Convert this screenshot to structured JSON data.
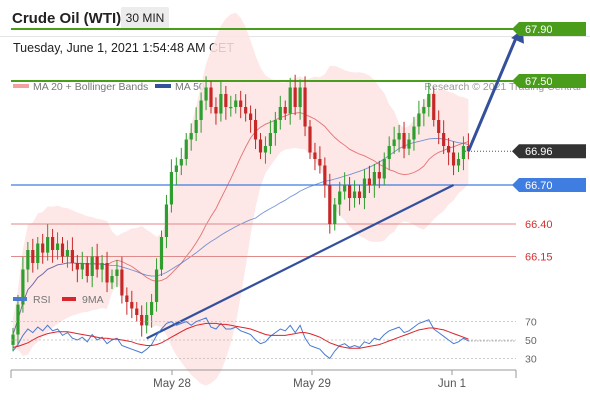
{
  "header": {
    "title": "Crude Oil (WTI)",
    "timeframe": "30 MIN"
  },
  "timestamp": "Tuesday, June 1, 2021 1:54:48 AM CET",
  "legend": {
    "bollinger": "MA 20 + Bollinger Bands",
    "ma50": "MA 50"
  },
  "copyright": "Research © 2021 Trading Central",
  "colors": {
    "up": "#2e9e2e",
    "down": "#c62828",
    "ma20": "#e57373",
    "band": "#fde3e3",
    "ma50": "#3f6cc4",
    "trend": "#33509b",
    "resistance": "#4a9d1b",
    "support_blue": "#3f7de0",
    "support_red": "#e08a8a",
    "current": "#333333",
    "rsi": "#4a7bd0",
    "rsi_ma": "#d9262c"
  },
  "chart_data": [
    {
      "type": "candlestick",
      "x_ticks": [
        "May 28",
        "May 29",
        "Jun 1"
      ],
      "ylim": [
        65.1,
        68.1
      ],
      "levels": [
        {
          "value": 67.9,
          "label": "67.90",
          "kind": "resistance"
        },
        {
          "value": 67.5,
          "label": "67.50",
          "kind": "resistance"
        },
        {
          "value": 66.96,
          "label": "66.96",
          "kind": "current"
        },
        {
          "value": 66.7,
          "label": "66.70",
          "kind": "support-pivot"
        },
        {
          "value": 66.4,
          "label": "66.40",
          "kind": "support"
        },
        {
          "value": 66.15,
          "label": "66.15",
          "kind": "support"
        }
      ],
      "trendline": [
        {
          "bar": 27,
          "value": 65.52
        },
        {
          "bar": 89,
          "value": 66.7
        }
      ],
      "forecast_arrow": [
        {
          "bar": 92,
          "value": 66.96
        },
        {
          "bar": 103,
          "value": 67.9
        }
      ],
      "closes": [
        65.55,
        65.78,
        66.05,
        66.2,
        66.1,
        66.25,
        66.18,
        66.3,
        66.2,
        66.25,
        66.15,
        66.2,
        66.1,
        66.05,
        66.1,
        66.0,
        66.15,
        66.05,
        66.1,
        65.95,
        66.0,
        66.05,
        65.85,
        65.8,
        65.75,
        65.7,
        65.62,
        65.7,
        65.8,
        66.05,
        66.3,
        66.55,
        66.8,
        66.85,
        66.9,
        67.05,
        67.1,
        67.2,
        67.35,
        67.45,
        67.3,
        67.25,
        67.4,
        67.3,
        67.3,
        67.35,
        67.3,
        67.25,
        67.2,
        67.05,
        66.95,
        67.0,
        67.1,
        67.2,
        67.3,
        67.25,
        67.45,
        67.3,
        67.45,
        67.15,
        66.95,
        66.9,
        66.85,
        66.7,
        66.4,
        66.55,
        66.65,
        66.7,
        66.6,
        66.65,
        66.6,
        66.75,
        66.7,
        66.8,
        66.75,
        66.9,
        67.0,
        67.05,
        67.1,
        66.98,
        67.05,
        67.15,
        67.25,
        67.3,
        67.4,
        67.2,
        67.1,
        67.0,
        66.95,
        66.85,
        66.9,
        67.0,
        66.96
      ]
    },
    {
      "type": "line",
      "name": "RSI",
      "legend": [
        "RSI",
        "9MA"
      ],
      "y_ticks": [
        70,
        50,
        30
      ],
      "ylim": [
        25,
        75
      ],
      "rsi": [
        38,
        45,
        55,
        62,
        58,
        64,
        60,
        66,
        60,
        62,
        55,
        58,
        52,
        50,
        53,
        48,
        56,
        50,
        53,
        46,
        50,
        52,
        44,
        42,
        40,
        38,
        36,
        40,
        45,
        55,
        62,
        68,
        70,
        66,
        68,
        70,
        66,
        70,
        72,
        74,
        64,
        62,
        68,
        62,
        62,
        64,
        60,
        58,
        56,
        50,
        46,
        48,
        54,
        58,
        62,
        60,
        66,
        58,
        66,
        52,
        44,
        42,
        40,
        34,
        30,
        38,
        44,
        46,
        42,
        44,
        42,
        48,
        46,
        52,
        50,
        56,
        60,
        62,
        64,
        58,
        60,
        64,
        68,
        70,
        72,
        62,
        58,
        54,
        50,
        46,
        48,
        52,
        49
      ],
      "ma9": [
        42,
        43,
        45,
        47,
        50,
        53,
        55,
        57,
        58,
        59,
        59,
        59,
        58,
        57,
        56,
        55,
        54,
        53,
        52,
        52,
        51,
        51,
        50,
        49,
        48,
        46,
        45,
        44,
        44,
        45,
        47,
        50,
        53,
        56,
        59,
        62,
        64,
        66,
        67,
        68,
        68,
        68,
        67,
        67,
        66,
        65,
        64,
        63,
        62,
        60,
        58,
        56,
        55,
        55,
        55,
        55,
        56,
        57,
        58,
        58,
        57,
        55,
        53,
        50,
        47,
        45,
        43,
        42,
        41,
        41,
        41,
        42,
        43,
        44,
        45,
        47,
        49,
        51,
        53,
        55,
        57,
        59,
        61,
        62,
        63,
        63,
        62,
        61,
        59,
        57,
        55,
        53,
        51
      ]
    }
  ]
}
